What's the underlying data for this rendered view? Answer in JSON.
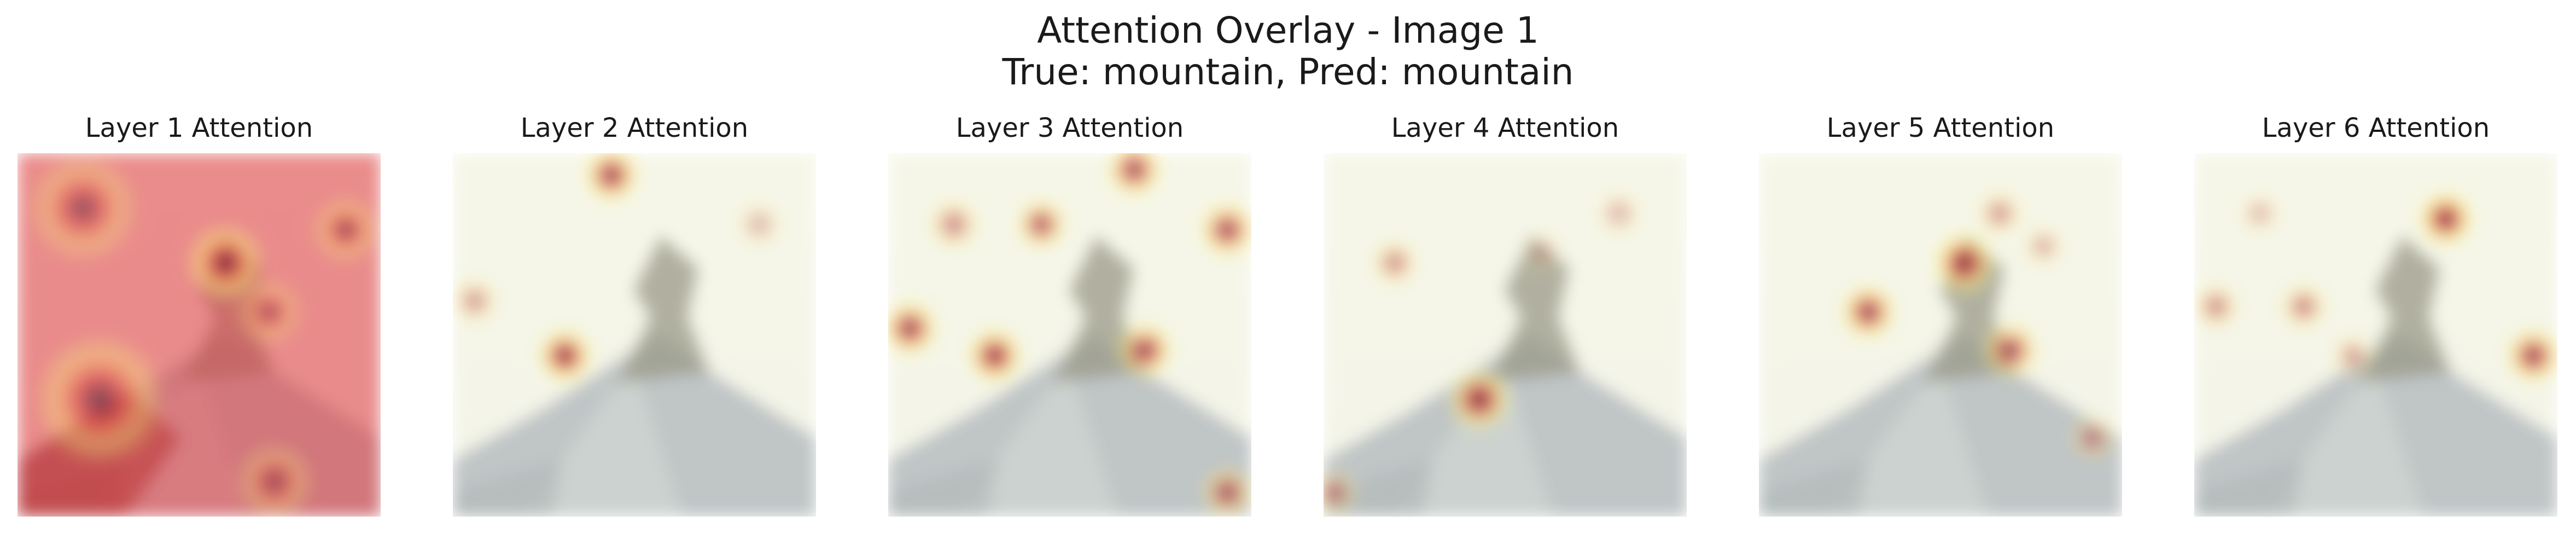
{
  "figure": {
    "title_line1": "Attention Overlay - Image 1",
    "title_line2": "True: mountain, Pred: mountain"
  },
  "panels": [
    {
      "title": "Layer 1 Attention"
    },
    {
      "title": "Layer 2 Attention"
    },
    {
      "title": "Layer 3 Attention"
    },
    {
      "title": "Layer 4 Attention"
    },
    {
      "title": "Layer 5 Attention"
    },
    {
      "title": "Layer 6 Attention"
    }
  ],
  "colors": {
    "background": "#ffffff",
    "sky": "#f3f4f3",
    "slope": "#b9bfcc",
    "rock": "#8e8c86",
    "heat_low": "#f7f57a",
    "heat_mid": "#e24a4a",
    "heat_high": "#2a1e3a"
  }
}
